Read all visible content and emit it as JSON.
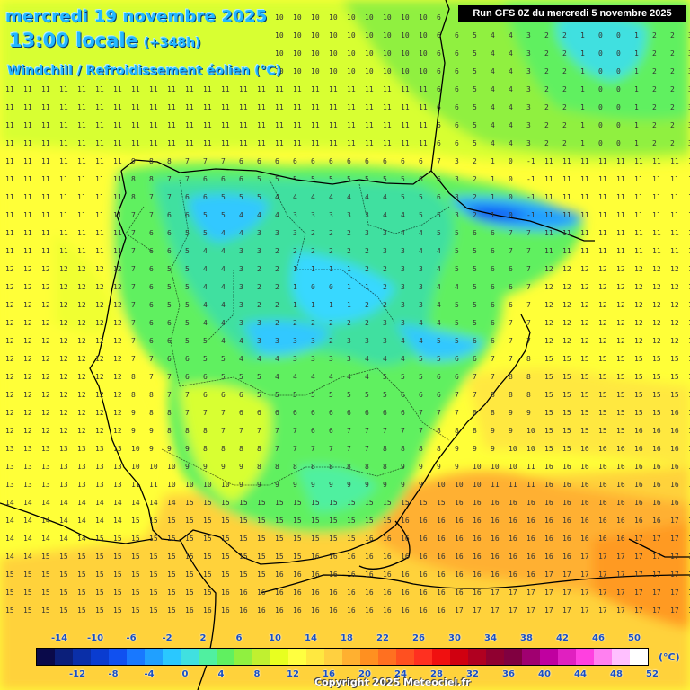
{
  "header": {
    "date": "mercredi 19 novembre 2025",
    "time": "13:00 locale",
    "lead": "(+348h)",
    "variable": "Windchill / Refroidissement éolien (°C)"
  },
  "run_info": "Run GFS 0Z du mercredi 5 novembre 2025",
  "legend": {
    "unit": "(°C)",
    "top_labels": [
      "-14",
      "-10",
      "-6",
      "-2",
      "2",
      "6",
      "10",
      "14",
      "18",
      "22",
      "26",
      "30",
      "34",
      "38",
      "42",
      "46",
      "50"
    ],
    "bottom_labels": [
      "-12",
      "-8",
      "-4",
      "0",
      "4",
      "8",
      "12",
      "16",
      "20",
      "24",
      "28",
      "32",
      "36",
      "40",
      "44",
      "48",
      "52"
    ],
    "colors": [
      "#0a0a4a",
      "#0b1f7a",
      "#0a2fa8",
      "#0a3cd0",
      "#1050f0",
      "#1878ff",
      "#20a0ff",
      "#2ac8ff",
      "#40e0e0",
      "#50f0a0",
      "#60f060",
      "#90f040",
      "#c0f030",
      "#e8ff20",
      "#ffff40",
      "#ffe840",
      "#ffd040",
      "#ffb030",
      "#ff9020",
      "#ff7020",
      "#ff5020",
      "#ff3020",
      "#f01010",
      "#d00010",
      "#b00020",
      "#900030",
      "#800040",
      "#a00070",
      "#c000a0",
      "#e020c0",
      "#ff40e0",
      "#ff80f0",
      "#ffc0ff",
      "#ffffff"
    ]
  },
  "copyright": "Copyright 2025 Meteociel.fr"
}
